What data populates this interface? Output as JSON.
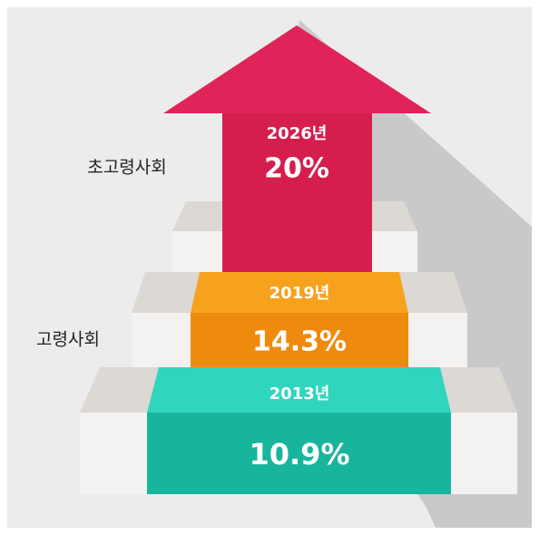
{
  "labels": [
    "초고령사회",
    "고령사회"
  ],
  "steps": [
    {
      "year": "2013년",
      "value": "10.9%"
    },
    {
      "year": "2019년",
      "value": "14.3%"
    },
    {
      "year": "2026년",
      "value": "20%"
    }
  ]
}
